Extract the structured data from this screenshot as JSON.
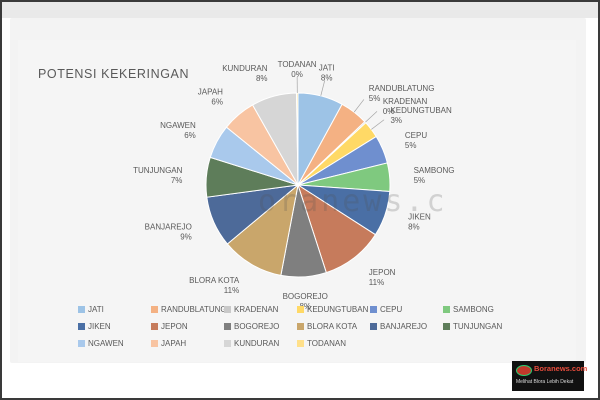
{
  "chart_data": {
    "type": "pie",
    "title": "POTENSI KEKERINGAN",
    "slices": [
      {
        "name": "JATI",
        "value": 8,
        "label": "8%",
        "color": "#9dc3e6"
      },
      {
        "name": "RANDUBLATUNG",
        "value": 5,
        "label": "5%",
        "color": "#f4b183"
      },
      {
        "name": "KRADENAN",
        "value": 0,
        "label": "0%",
        "color": "#c9c9c9"
      },
      {
        "name": "KEDUNGTUBAN",
        "value": 3,
        "label": "3%",
        "color": "#ffd966"
      },
      {
        "name": "CEPU",
        "value": 5,
        "label": "5%",
        "color": "#6f8fcf"
      },
      {
        "name": "SAMBONG",
        "value": 5,
        "label": "5%",
        "color": "#7fc97f"
      },
      {
        "name": "JIKEN",
        "value": 8,
        "label": "8%",
        "color": "#4a6fa5"
      },
      {
        "name": "JEPON",
        "value": 11,
        "label": "11%",
        "color": "#c67b5c"
      },
      {
        "name": "BOGOREJO",
        "value": 8,
        "label": "8%",
        "color": "#7f7f7f"
      },
      {
        "name": "BLORA KOTA",
        "value": 11,
        "label": "11%",
        "color": "#c9a66b"
      },
      {
        "name": "BANJAREJO",
        "value": 9,
        "label": "9%",
        "color": "#4d6a99"
      },
      {
        "name": "TUNJUNGAN",
        "value": 7,
        "label": "7%",
        "color": "#5e7d5a"
      },
      {
        "name": "NGAWEN",
        "value": 6,
        "label": "6%",
        "color": "#a9c9ec"
      },
      {
        "name": "JAPAH",
        "value": 6,
        "label": "6%",
        "color": "#f8c4a2"
      },
      {
        "name": "KUNDURAN",
        "value": 8,
        "label": "8%",
        "color": "#d6d6d6"
      },
      {
        "name": "TODANAN",
        "value": 0,
        "label": "0%",
        "color": "#ffe08a"
      }
    ],
    "legend_position": "bottom"
  },
  "watermark": "oranews.c",
  "logo": {
    "word": "Boranews.com",
    "tagline": "Melihat Blora Lebih Dekat"
  }
}
